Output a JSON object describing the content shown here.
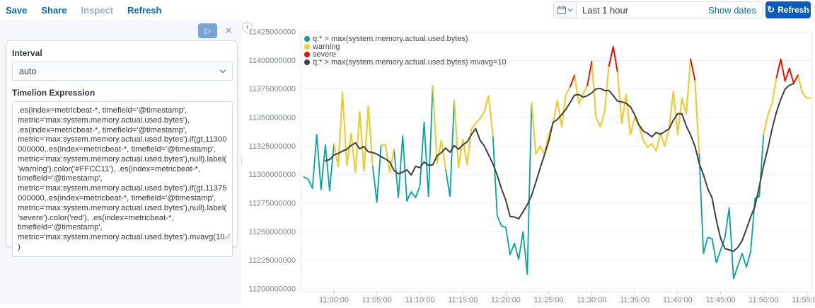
{
  "top_nav": {
    "items": [
      {
        "label": "Save",
        "disabled": false
      },
      {
        "label": "Share",
        "disabled": false
      },
      {
        "label": "Inspect",
        "disabled": true
      },
      {
        "label": "Refresh",
        "disabled": false
      }
    ]
  },
  "time_picker": {
    "quick_select_icon": "calendar-icon",
    "value": "Last 1 hour",
    "show_dates_label": "Show dates",
    "refresh_button_label": "Refresh"
  },
  "editor_panel": {
    "play_icon": "play-icon",
    "close_icon": "close-icon",
    "interval_label": "Interval",
    "interval_value": "auto",
    "expression_label": "Timelion Expression",
    "expression": ".es(index=metricbeat-*, timefield='@timestamp', metric='max:system.memory.actual.used.bytes'), .es(index=metricbeat-*, timefield='@timestamp', metric='max:system.memory.actual.used.bytes').if(gt,11300000000,.es(index=metricbeat-*, timefield='@timestamp', metric='max:system.memory.actual.used.bytes'),null).label('warning').color('#FFCC11'), .es(index=metricbeat-*, timefield='@timestamp', metric='max:system.memory.actual.used.bytes').if(gt,11375000000,.es(index=metricbeat-*, timefield='@timestamp', metric='max:system.memory.actual.used.bytes'),null).label('severe').color('red'), .es(index=metricbeat-*, timefield='@timestamp', metric='max:system.memory.actual.used.bytes').mvavg(10)"
  },
  "chart_data": {
    "type": "line",
    "unit": "bytes",
    "ylim": [
      11200000000,
      11425000000
    ],
    "y_ticks": [
      11200000000,
      11225000000,
      11250000000,
      11275000000,
      11300000000,
      11325000000,
      11350000000,
      11375000000,
      11400000000,
      11425000000
    ],
    "x_tick_labels": [
      "11:00:00",
      "11:05:00",
      "11:10:00",
      "11:15:00",
      "11:20:00",
      "11:25:00",
      "11:30:00",
      "11:35:00",
      "11:40:00",
      "11:45:00",
      "11:50:00",
      "11:55:00"
    ],
    "x_start_offset_minutes": -3.5,
    "interval_seconds": 30,
    "grid": true,
    "legend_position": "top-left",
    "series": [
      {
        "name": "q:* > max(system.memory.actual.used.bytes)",
        "color": "#00A69B",
        "kind": "raw"
      },
      {
        "name": "warning",
        "color": "#FFCC11",
        "kind": "threshold",
        "threshold": 11300000000
      },
      {
        "name": "severe",
        "color": "#FF0000",
        "kind": "threshold",
        "threshold": 11375000000
      },
      {
        "name": "q:* > max(system.memory.actual.used.bytes) mvavg=10",
        "color": "#3F3F42",
        "kind": "mvavg",
        "window": 10
      }
    ],
    "values": [
      11298000000,
      11296000000,
      11288000000,
      11335000000,
      11287000000,
      11326000000,
      11286000000,
      11327000000,
      11307000000,
      11372000000,
      11308000000,
      11336000000,
      11302000000,
      11355000000,
      11303000000,
      11360000000,
      11308000000,
      11276000000,
      11326000000,
      11326000000,
      11302000000,
      11322000000,
      11280000000,
      11334000000,
      11277000000,
      11285000000,
      11280000000,
      11290000000,
      11346000000,
      11281000000,
      11378000000,
      11310000000,
      11330000000,
      11305000000,
      11281000000,
      11365000000,
      11306000000,
      11331000000,
      11309000000,
      11340000000,
      11345000000,
      11349000000,
      11355000000,
      11369000000,
      11334000000,
      11264000000,
      11255000000,
      11254000000,
      11230000000,
      11240000000,
      11226000000,
      11250000000,
      11213000000,
      11363000000,
      11318000000,
      11325000000,
      11318000000,
      11335000000,
      11345000000,
      11365000000,
      11342000000,
      11370000000,
      11377000000,
      11387000000,
      11362000000,
      11371000000,
      11378000000,
      11399000000,
      11350000000,
      11342000000,
      11355000000,
      11395000000,
      11412000000,
      11390000000,
      11345000000,
      11370000000,
      11335000000,
      11350000000,
      11343000000,
      11330000000,
      11324000000,
      11327000000,
      11321000000,
      11336000000,
      11325000000,
      11340000000,
      11373000000,
      11335000000,
      11367000000,
      11353000000,
      11401000000,
      11383000000,
      11319000000,
      11231000000,
      11245000000,
      11244000000,
      11223000000,
      11234000000,
      11245000000,
      11271000000,
      11209000000,
      11220000000,
      11231000000,
      11219000000,
      11233000000,
      11279000000,
      11281000000,
      11335000000,
      11352000000,
      11363000000,
      11385000000,
      11401000000,
      11382000000,
      11393000000,
      11380000000,
      11387000000,
      11372000000,
      11367000000,
      11367000000
    ]
  }
}
